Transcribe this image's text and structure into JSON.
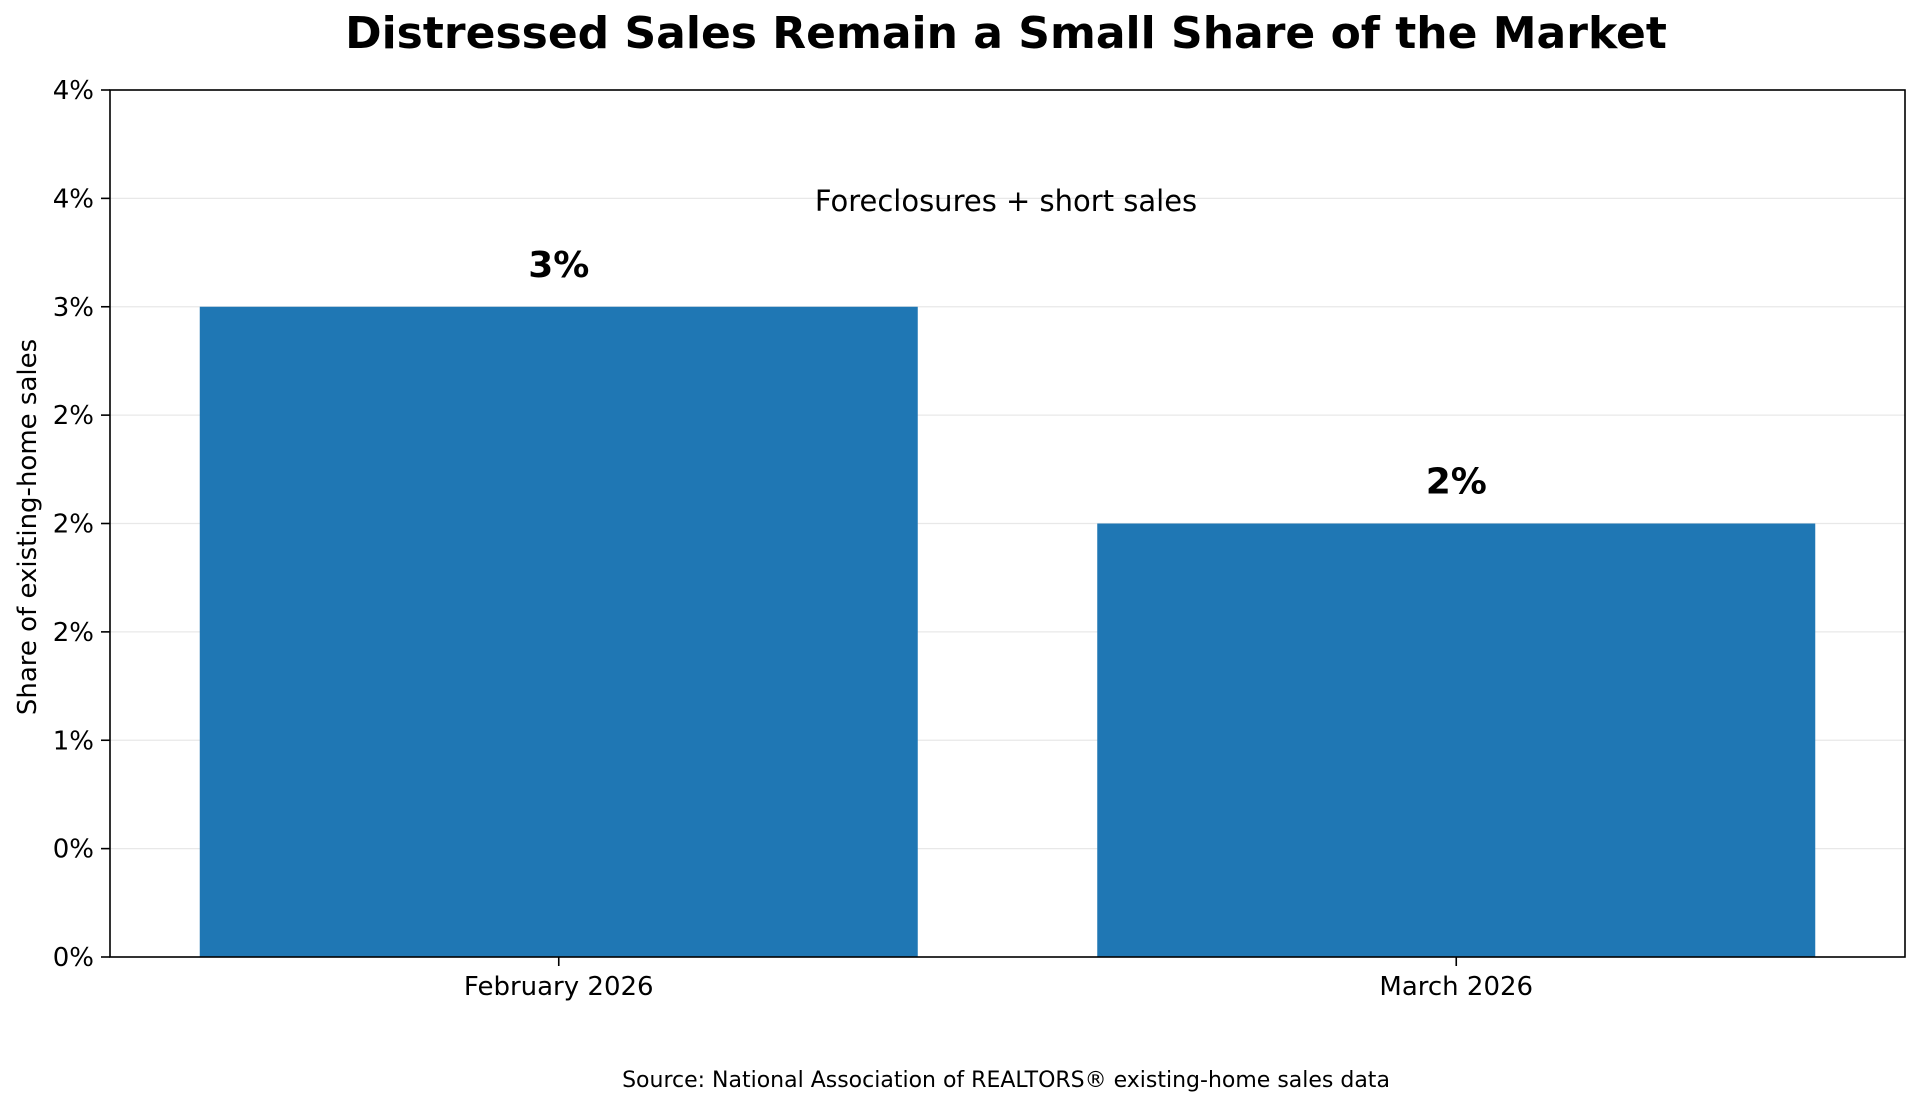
{
  "chart_data": {
    "type": "bar",
    "title": "Distressed Sales Remain a Small Share of the Market",
    "xlabel": "",
    "ylabel": "Share of existing-home sales",
    "categories": [
      "February 2026",
      "March 2026"
    ],
    "values": [
      3,
      2
    ],
    "data_labels": [
      "3%",
      "2%"
    ],
    "ylim": [
      0,
      4
    ],
    "yticks": [
      0,
      0.5,
      1,
      1.5,
      2,
      2.5,
      3,
      3.5,
      4
    ],
    "ytick_labels": [
      "0%",
      "0%",
      "1%",
      "2%",
      "2%",
      "2%",
      "3%",
      "4%",
      "4%"
    ],
    "annotation": "Foreclosures + short sales",
    "source": "Source: National Association of REALTORS® existing-home sales data",
    "grid": "horizontal",
    "legend": "none",
    "colors": {
      "bar": "#1f77b4",
      "grid": "#e8e8e8",
      "axis": "#000000"
    }
  }
}
